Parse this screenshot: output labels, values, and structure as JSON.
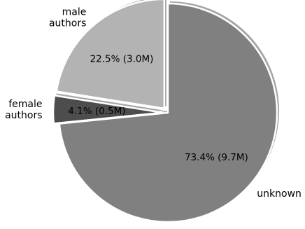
{
  "chart_data": {
    "type": "pie",
    "title": "",
    "slices": [
      {
        "label": "unknown",
        "label_lines": [
          "unknown"
        ],
        "value": 73.4,
        "display": "73.4% (9.7M)",
        "color": "#808080",
        "exploded": false
      },
      {
        "label": "female authors",
        "label_lines": [
          "female",
          "authors"
        ],
        "value": 4.1,
        "display": "4.1% (0.5M)",
        "color": "#4d4d4d",
        "exploded": true
      },
      {
        "label": "male authors",
        "label_lines": [
          "male",
          "authors"
        ],
        "value": 22.5,
        "display": "22.5% (3.0M)",
        "color": "#b3b3b3",
        "exploded": true
      }
    ],
    "start_angle": "12 o'clock",
    "direction": "clockwise",
    "shadow": true,
    "legend": "none"
  }
}
